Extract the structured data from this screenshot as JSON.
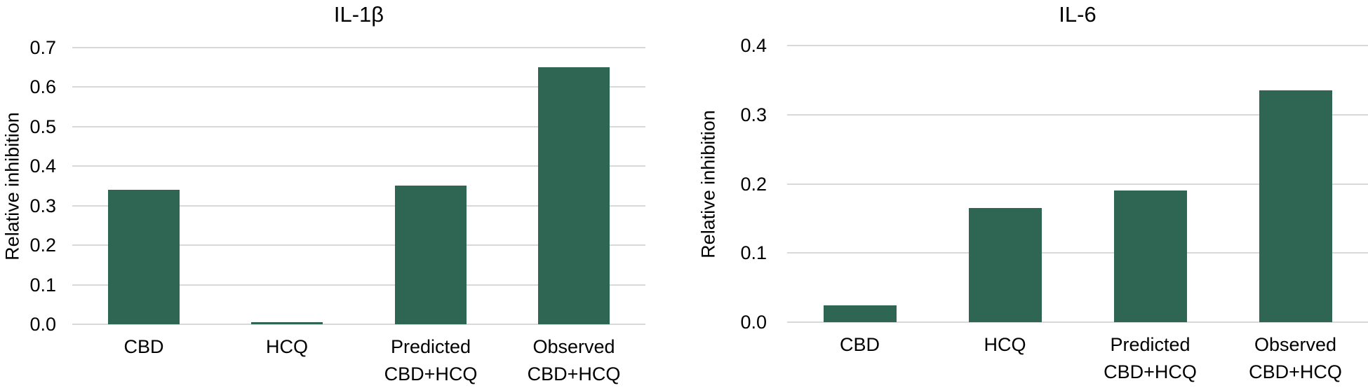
{
  "figure": {
    "background_color": "#ffffff",
    "text_color": "#000000"
  },
  "chart_data": [
    {
      "type": "bar",
      "title": "IL-1β",
      "xlabel": "",
      "ylabel": "Relative inhibition",
      "categories": [
        "CBD",
        "HCQ",
        "Predicted\nCBD+HCQ",
        "Observed\nCBD+HCQ"
      ],
      "values": [
        0.34,
        0.005,
        0.35,
        0.65
      ],
      "ylim": [
        0,
        0.7
      ],
      "yticks": [
        0.0,
        0.1,
        0.2,
        0.3,
        0.4,
        0.5,
        0.6,
        0.7
      ],
      "ytick_labels": [
        "0.0",
        "0.1",
        "0.2",
        "0.3",
        "0.4",
        "0.5",
        "0.6",
        "0.7"
      ],
      "bar_color": "#2e6553",
      "grid_color": "#d9d9d9",
      "grid": "horizontal",
      "legend": "none"
    },
    {
      "type": "bar",
      "title": "IL-6",
      "xlabel": "",
      "ylabel": "Relative inhibition",
      "categories": [
        "CBD",
        "HCQ",
        "Predicted\nCBD+HCQ",
        "Observed\nCBD+HCQ"
      ],
      "values": [
        0.024,
        0.165,
        0.19,
        0.335
      ],
      "ylim": [
        0,
        0.4
      ],
      "yticks": [
        0.0,
        0.1,
        0.2,
        0.3,
        0.4
      ],
      "ytick_labels": [
        "0.0",
        "0.1",
        "0.2",
        "0.3",
        "0.4"
      ],
      "bar_color": "#2e6553",
      "grid_color": "#d9d9d9",
      "grid": "horizontal",
      "legend": "none"
    }
  ]
}
